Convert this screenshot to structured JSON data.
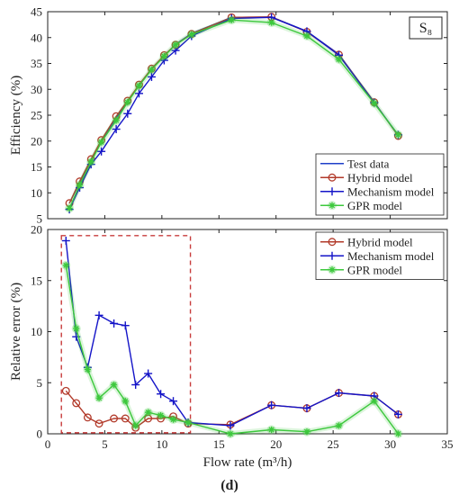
{
  "figure": {
    "caption": "(d)"
  },
  "chart_data": [
    {
      "type": "line",
      "panel": "top",
      "ylabel": "Efficiency (%)",
      "xlim": [
        0,
        35
      ],
      "ylim": [
        5,
        45
      ],
      "xticks": [
        0,
        5,
        10,
        15,
        20,
        25,
        30,
        35
      ],
      "yticks": [
        5,
        10,
        15,
        20,
        25,
        30,
        35,
        40,
        45
      ],
      "annotation": "S₈",
      "legend_position": "bottom-right",
      "grid": false,
      "series": [
        {
          "name": "Test data",
          "marker": "none",
          "color": "#1f3fc8",
          "x": [
            1.9,
            2.8,
            3.8,
            4.7,
            6.0,
            7.0,
            8.0,
            9.1,
            10.2,
            11.2,
            12.6,
            16.1,
            19.6,
            22.7,
            25.5,
            28.6,
            30.7
          ],
          "y": [
            8.0,
            12.0,
            16.5,
            20.0,
            24.5,
            27.6,
            30.8,
            34.0,
            36.5,
            38.7,
            40.8,
            43.9,
            44.0,
            41.2,
            36.8,
            27.5,
            21.0
          ]
        },
        {
          "name": "Hybrid model",
          "marker": "circle",
          "color": "#b23a2a",
          "x": [
            1.9,
            2.8,
            3.8,
            4.7,
            6.0,
            7.0,
            8.0,
            9.1,
            10.2,
            11.2,
            12.6,
            16.1,
            19.6,
            22.7,
            25.5,
            28.6,
            30.7
          ],
          "y": [
            8.0,
            12.2,
            16.5,
            20.2,
            24.8,
            27.8,
            30.9,
            34.0,
            36.6,
            38.6,
            40.7,
            43.9,
            44.0,
            41.1,
            36.7,
            27.5,
            21.0
          ]
        },
        {
          "name": "Mechanism model",
          "marker": "plus",
          "color": "#1414c8",
          "x": [
            1.9,
            2.8,
            3.8,
            4.7,
            6.0,
            7.0,
            8.0,
            9.1,
            10.2,
            11.2,
            12.6,
            16.1,
            19.6,
            22.7,
            25.5,
            28.6,
            30.7
          ],
          "y": [
            6.8,
            11.0,
            15.5,
            18.0,
            22.3,
            25.3,
            29.2,
            32.4,
            35.6,
            37.5,
            40.3,
            43.7,
            43.9,
            41.2,
            36.6,
            27.4,
            21.2
          ]
        },
        {
          "name": "GPR model",
          "marker": "asterisk",
          "color": "#3cc83c",
          "x": [
            1.9,
            2.8,
            3.8,
            4.7,
            6.0,
            7.0,
            8.0,
            9.1,
            10.2,
            11.2,
            12.6,
            16.1,
            19.6,
            22.7,
            25.5,
            28.6,
            30.7
          ],
          "y": [
            7.0,
            11.5,
            16.0,
            19.8,
            24.0,
            27.5,
            30.7,
            33.8,
            36.4,
            38.6,
            40.6,
            43.4,
            42.9,
            40.3,
            35.8,
            27.3,
            21.2
          ]
        }
      ]
    },
    {
      "type": "line",
      "panel": "bottom",
      "xlabel": "Flow rate (m³/h)",
      "ylabel": "Relative error (%)",
      "xlim": [
        0,
        35
      ],
      "ylim": [
        0,
        20
      ],
      "xticks": [
        0,
        5,
        10,
        15,
        20,
        25,
        30,
        35
      ],
      "yticks": [
        0,
        5,
        10,
        15,
        20
      ],
      "legend_position": "top-right",
      "grid": false,
      "highlight_box": {
        "x": [
          1.2,
          12.5
        ],
        "y": [
          0.1,
          19.4
        ],
        "color": "#c83c3c",
        "style": "dashed"
      },
      "series": [
        {
          "name": "Hybrid model",
          "marker": "circle",
          "color": "#b23a2a",
          "x": [
            1.6,
            2.5,
            3.5,
            4.5,
            5.8,
            6.8,
            7.7,
            8.8,
            9.9,
            11.0,
            12.3,
            16.0,
            19.6,
            22.7,
            25.5,
            28.6,
            30.7
          ],
          "y": [
            4.2,
            3.0,
            1.6,
            1.0,
            1.5,
            1.5,
            0.6,
            1.5,
            1.5,
            1.7,
            1.0,
            0.9,
            2.8,
            2.5,
            4.0,
            3.7,
            1.9
          ]
        },
        {
          "name": "Mechanism model",
          "marker": "plus",
          "color": "#1414c8",
          "x": [
            1.6,
            2.5,
            3.5,
            4.5,
            5.8,
            6.8,
            7.7,
            8.8,
            9.9,
            11.0,
            12.3,
            16.0,
            19.6,
            22.7,
            25.5,
            28.6,
            30.7
          ],
          "y": [
            18.9,
            9.5,
            6.5,
            11.6,
            10.8,
            10.6,
            4.8,
            5.9,
            3.9,
            3.2,
            1.1,
            0.8,
            2.8,
            2.5,
            4.0,
            3.7,
            1.9
          ]
        },
        {
          "name": "GPR model",
          "marker": "asterisk",
          "color": "#3cc83c",
          "x": [
            1.6,
            2.5,
            3.5,
            4.5,
            5.8,
            6.8,
            7.7,
            8.8,
            9.9,
            11.0,
            12.3,
            16.0,
            19.6,
            22.7,
            25.5,
            28.6,
            30.7
          ],
          "y": [
            16.5,
            10.3,
            6.3,
            3.5,
            4.8,
            3.2,
            0.8,
            2.1,
            1.8,
            1.4,
            1.1,
            0.0,
            0.4,
            0.2,
            0.8,
            3.2,
            0.0
          ]
        }
      ]
    }
  ]
}
